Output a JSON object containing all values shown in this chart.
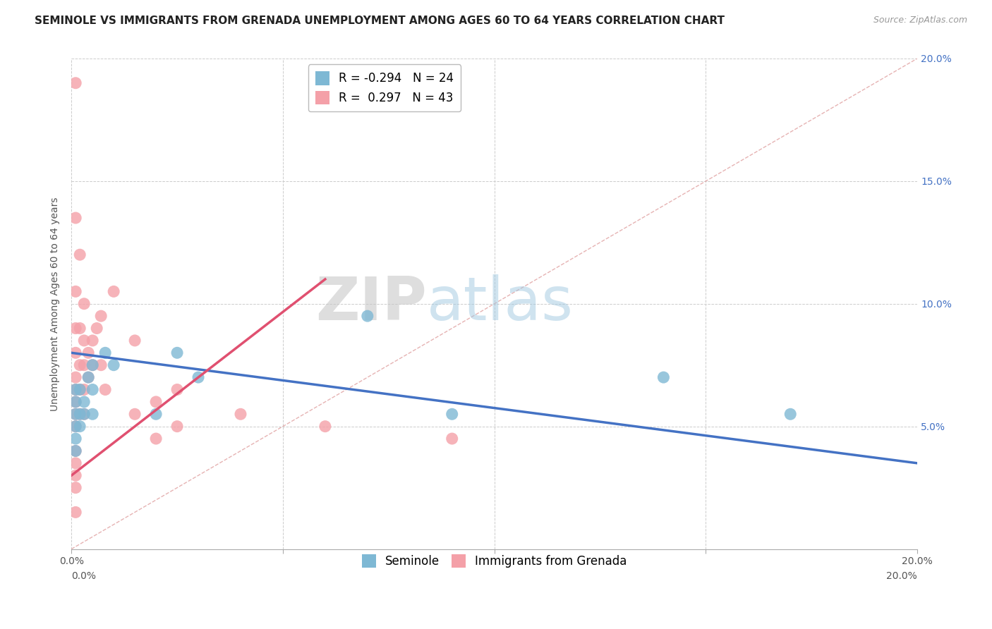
{
  "title": "SEMINOLE VS IMMIGRANTS FROM GRENADA UNEMPLOYMENT AMONG AGES 60 TO 64 YEARS CORRELATION CHART",
  "source": "Source: ZipAtlas.com",
  "ylabel": "Unemployment Among Ages 60 to 64 years",
  "xlim": [
    0.0,
    0.2
  ],
  "ylim": [
    0.0,
    0.2
  ],
  "xticks": [
    0.0,
    0.05,
    0.1,
    0.15,
    0.2
  ],
  "yticks": [
    0.0,
    0.05,
    0.1,
    0.15,
    0.2
  ],
  "xticklabels": [
    "0.0%",
    "",
    "",
    "",
    "20.0%"
  ],
  "yticklabels_right": [
    "",
    "5.0%",
    "10.0%",
    "15.0%",
    "20.0%"
  ],
  "legend_blue_r": "-0.294",
  "legend_blue_n": "24",
  "legend_pink_r": "0.297",
  "legend_pink_n": "43",
  "blue_color": "#7EB8D4",
  "pink_color": "#F4A0A8",
  "blue_line_color": "#4472C4",
  "pink_line_color": "#E05070",
  "diag_line_color": "#e0a0a0",
  "watermark_zip": "ZIP",
  "watermark_atlas": "atlas",
  "seminole_x": [
    0.001,
    0.001,
    0.001,
    0.001,
    0.001,
    0.001,
    0.002,
    0.002,
    0.002,
    0.003,
    0.003,
    0.004,
    0.005,
    0.005,
    0.005,
    0.008,
    0.01,
    0.02,
    0.025,
    0.03,
    0.07,
    0.09,
    0.14,
    0.17
  ],
  "seminole_y": [
    0.04,
    0.045,
    0.05,
    0.055,
    0.06,
    0.065,
    0.05,
    0.055,
    0.065,
    0.055,
    0.06,
    0.07,
    0.055,
    0.065,
    0.075,
    0.08,
    0.075,
    0.055,
    0.08,
    0.07,
    0.095,
    0.055,
    0.07,
    0.055
  ],
  "grenada_x": [
    0.001,
    0.001,
    0.001,
    0.001,
    0.001,
    0.001,
    0.001,
    0.001,
    0.001,
    0.001,
    0.001,
    0.001,
    0.001,
    0.001,
    0.001,
    0.002,
    0.002,
    0.002,
    0.002,
    0.002,
    0.003,
    0.003,
    0.003,
    0.003,
    0.003,
    0.004,
    0.004,
    0.005,
    0.005,
    0.006,
    0.007,
    0.007,
    0.008,
    0.01,
    0.015,
    0.015,
    0.02,
    0.02,
    0.025,
    0.025,
    0.04,
    0.06,
    0.09
  ],
  "grenada_y": [
    0.19,
    0.135,
    0.105,
    0.09,
    0.08,
    0.07,
    0.065,
    0.06,
    0.055,
    0.05,
    0.04,
    0.035,
    0.03,
    0.025,
    0.015,
    0.12,
    0.09,
    0.075,
    0.065,
    0.055,
    0.1,
    0.085,
    0.075,
    0.065,
    0.055,
    0.08,
    0.07,
    0.085,
    0.075,
    0.09,
    0.095,
    0.075,
    0.065,
    0.105,
    0.085,
    0.055,
    0.06,
    0.045,
    0.065,
    0.05,
    0.055,
    0.05,
    0.045
  ],
  "blue_trend": [
    0.08,
    0.035
  ],
  "pink_trend_x": [
    0.0,
    0.06
  ],
  "pink_trend_y": [
    0.03,
    0.11
  ],
  "background_color": "#ffffff",
  "grid_color": "#cccccc",
  "title_fontsize": 11,
  "axis_label_fontsize": 10,
  "tick_fontsize": 10,
  "legend_fontsize": 12,
  "source_fontsize": 9
}
